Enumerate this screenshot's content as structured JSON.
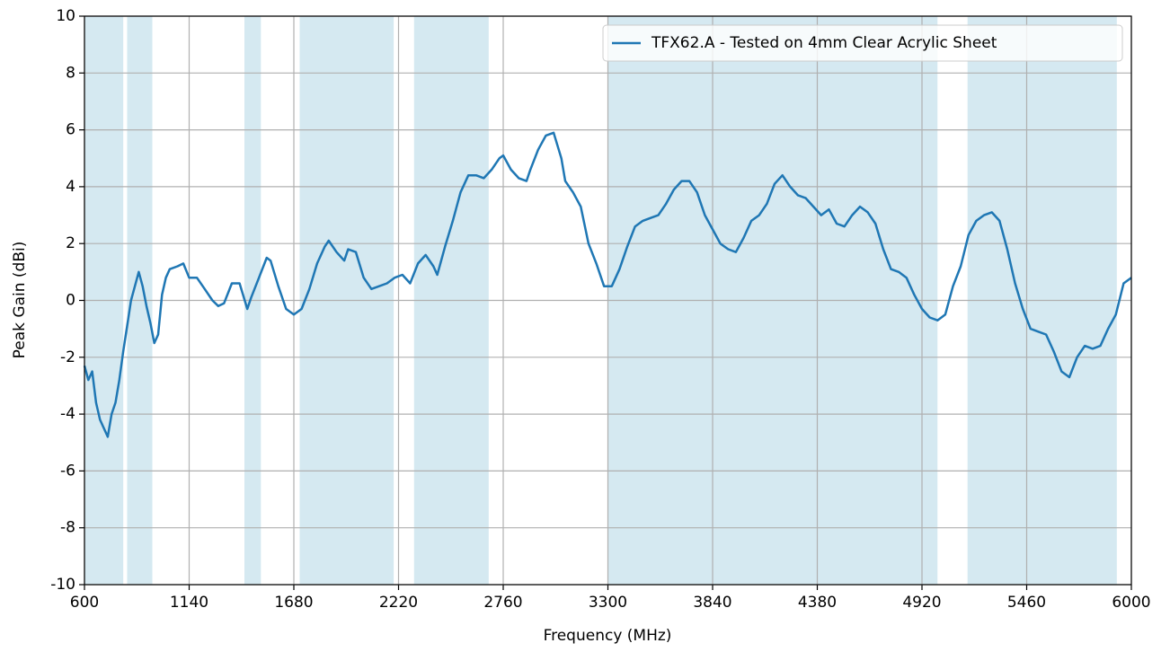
{
  "chart_data": {
    "type": "line",
    "xlabel": "Frequency (MHz)",
    "ylabel": "Peak Gain (dBi)",
    "xlim": [
      600,
      6000
    ],
    "xticks": [
      600,
      1140,
      1680,
      2220,
      2760,
      3300,
      3840,
      4380,
      4920,
      5460,
      6000
    ],
    "ylim": [
      -10,
      10
    ],
    "yticks": [
      -10,
      -8,
      -6,
      -4,
      -2,
      0,
      2,
      4,
      6,
      8,
      10
    ],
    "grid": true,
    "legend": "upper right",
    "shade_color": "#d5e9f1",
    "shaded_ranges": [
      [
        600,
        800
      ],
      [
        820,
        950
      ],
      [
        1425,
        1510
      ],
      [
        1710,
        2195
      ],
      [
        2300,
        2685
      ],
      [
        3300,
        5000
      ],
      [
        5155,
        5925
      ]
    ],
    "x": [
      600,
      620,
      640,
      660,
      680,
      700,
      720,
      740,
      760,
      780,
      800,
      820,
      840,
      860,
      880,
      900,
      920,
      940,
      960,
      980,
      1000,
      1020,
      1040,
      1080,
      1110,
      1140,
      1180,
      1220,
      1260,
      1290,
      1320,
      1360,
      1400,
      1440,
      1460,
      1500,
      1540,
      1560,
      1600,
      1640,
      1680,
      1720,
      1760,
      1800,
      1840,
      1860,
      1900,
      1940,
      1960,
      2000,
      2040,
      2080,
      2120,
      2160,
      2200,
      2240,
      2280,
      2320,
      2360,
      2400,
      2420,
      2460,
      2500,
      2540,
      2580,
      2620,
      2660,
      2700,
      2740,
      2760,
      2800,
      2840,
      2880,
      2900,
      2940,
      2980,
      3020,
      3060,
      3080,
      3120,
      3160,
      3200,
      3240,
      3280,
      3320,
      3360,
      3400,
      3440,
      3480,
      3520,
      3560,
      3600,
      3640,
      3680,
      3720,
      3760,
      3800,
      3840,
      3880,
      3920,
      3960,
      4000,
      4040,
      4080,
      4120,
      4160,
      4200,
      4240,
      4280,
      4320,
      4360,
      4400,
      4440,
      4480,
      4520,
      4560,
      4600,
      4640,
      4680,
      4720,
      4760,
      4800,
      4840,
      4880,
      4920,
      4960,
      5000,
      5040,
      5080,
      5120,
      5160,
      5200,
      5240,
      5280,
      5320,
      5360,
      5400,
      5440,
      5480,
      5520,
      5560,
      5600,
      5640,
      5680,
      5720,
      5760,
      5800,
      5840,
      5880,
      5920,
      5960,
      6000
    ],
    "series": [
      {
        "name": "TFX62.A - Tested on 4mm Clear Acrylic Sheet",
        "color": "#1f77b4",
        "values": [
          -2.3,
          -2.8,
          -2.5,
          -3.6,
          -4.2,
          -4.5,
          -4.8,
          -4.0,
          -3.6,
          -2.8,
          -1.8,
          -0.9,
          0,
          0.5,
          1.0,
          0.5,
          -0.2,
          -0.8,
          -1.5,
          -1.2,
          0.2,
          0.8,
          1.1,
          1.2,
          1.3,
          0.8,
          0.8,
          0.4,
          0,
          -0.2,
          -0.1,
          0.6,
          0.6,
          -0.3,
          0.1,
          0.8,
          1.5,
          1.4,
          0.5,
          -0.3,
          -0.5,
          -0.3,
          0.4,
          1.3,
          1.9,
          2.1,
          1.7,
          1.4,
          1.8,
          1.7,
          0.8,
          0.4,
          0.5,
          0.6,
          0.8,
          0.9,
          0.6,
          1.3,
          1.6,
          1.2,
          0.9,
          1.9,
          2.8,
          3.8,
          4.4,
          4.4,
          4.3,
          4.6,
          5.0,
          5.1,
          4.6,
          4.3,
          4.2,
          4.6,
          5.3,
          5.8,
          5.9,
          5.0,
          4.2,
          3.8,
          3.3,
          2.0,
          1.3,
          0.5,
          0.5,
          1.1,
          1.9,
          2.6,
          2.8,
          2.9,
          3.0,
          3.4,
          3.9,
          4.2,
          4.2,
          3.8,
          3.0,
          2.5,
          2.0,
          1.8,
          1.7,
          2.2,
          2.8,
          3.0,
          3.4,
          4.1,
          4.4,
          4.0,
          3.7,
          3.6,
          3.3,
          3.0,
          3.2,
          2.7,
          2.6,
          3.0,
          3.3,
          3.1,
          2.7,
          1.8,
          1.1,
          1.0,
          0.8,
          0.2,
          -0.3,
          -0.6,
          -0.7,
          -0.5,
          0.5,
          1.2,
          2.3,
          2.8,
          3.0,
          3.1,
          2.8,
          1.8,
          0.6,
          -0.3,
          -1.0,
          -1.1,
          -1.2,
          -1.8,
          -2.5,
          -2.7,
          -2.0,
          -1.6,
          -1.7,
          -1.6,
          -1.0,
          -0.5,
          0.6,
          0.8
        ]
      }
    ]
  }
}
